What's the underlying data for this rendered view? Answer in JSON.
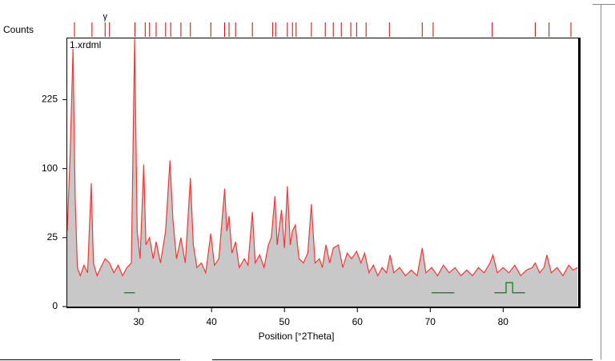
{
  "chart_data": {
    "type": "line",
    "y_axis_label": "Counts",
    "x_axis_label": "Position [°2Theta]",
    "annotation": "1.xrdml",
    "reference_label": "γ",
    "reference_label_x": 25.4,
    "yscale": "sqrt",
    "xlim": [
      20.1,
      90.4
    ],
    "ylim": [
      0,
      380
    ],
    "xticks": [
      30,
      40,
      50,
      60,
      70,
      80
    ],
    "yticks": [
      0,
      25,
      100,
      225
    ],
    "color": "#ff3333",
    "fill_color": "#c8c8c8",
    "x": [
      20.2,
      20.6,
      21.0,
      21.3,
      21.6,
      22.0,
      22.5,
      23.0,
      23.5,
      23.8,
      24.3,
      24.8,
      25.4,
      26.0,
      26.6,
      27.2,
      27.8,
      28.4,
      29.0,
      29.45,
      29.8,
      30.2,
      30.7,
      31.0,
      31.5,
      32.0,
      32.4,
      33.0,
      33.7,
      34.3,
      34.7,
      35.2,
      35.8,
      36.4,
      37.1,
      37.5,
      38.0,
      38.6,
      39.2,
      39.9,
      40.4,
      41.0,
      41.8,
      42.1,
      42.4,
      42.8,
      43.3,
      43.8,
      44.5,
      45.0,
      45.6,
      46.0,
      46.6,
      47.2,
      47.8,
      48.2,
      48.7,
      49.0,
      49.6,
      50.0,
      50.4,
      50.8,
      51.1,
      51.5,
      52.0,
      52.6,
      53.2,
      53.7,
      54.2,
      54.8,
      55.2,
      55.7,
      56.2,
      56.7,
      57.4,
      58.0,
      58.6,
      59.2,
      59.9,
      60.5,
      61.0,
      61.6,
      62.2,
      62.8,
      63.4,
      64.0,
      64.5,
      65.0,
      65.8,
      66.6,
      67.4,
      68.2,
      68.9,
      69.4,
      70.2,
      71.0,
      71.8,
      72.6,
      73.4,
      74.2,
      75.0,
      75.8,
      76.6,
      77.4,
      78.2,
      78.6,
      79.2,
      80.0,
      80.8,
      81.6,
      82.4,
      83.2,
      84.0,
      84.4,
      85.0,
      85.6,
      86.0,
      86.6,
      87.4,
      88.2,
      89.0,
      89.6,
      90.2
    ],
    "values": [
      30,
      120,
      349,
      60,
      8,
      5,
      9,
      6,
      80,
      10,
      5,
      8,
      12,
      10,
      6,
      9,
      5,
      8,
      10,
      377,
      30,
      12,
      106,
      20,
      25,
      12,
      22,
      10,
      30,
      112,
      40,
      12,
      25,
      10,
      87,
      20,
      8,
      10,
      6,
      28,
      9,
      12,
      73,
      30,
      43,
      15,
      22,
      8,
      12,
      9,
      47,
      10,
      14,
      8,
      20,
      25,
      64,
      20,
      49,
      18,
      76,
      20,
      30,
      35,
      12,
      10,
      15,
      55,
      10,
      12,
      8,
      20,
      10,
      18,
      20,
      8,
      15,
      12,
      16,
      10,
      15,
      6,
      9,
      5,
      8,
      6,
      14,
      6,
      8,
      5,
      7,
      5,
      18,
      6,
      8,
      5,
      9,
      6,
      8,
      5,
      7,
      5,
      8,
      6,
      10,
      14,
      6,
      8,
      6,
      9,
      5,
      7,
      8,
      10,
      6,
      8,
      14,
      6,
      8,
      5,
      9,
      7,
      8
    ],
    "background": {
      "color": "#008000",
      "x": [
        28.0,
        29.5,
        50.0,
        70.2,
        73.3,
        75.0,
        78.8,
        80.4,
        80.4,
        81.3,
        81.3,
        83.0
      ],
      "values": [
        1,
        1,
        null,
        1,
        1,
        null,
        1,
        1,
        3,
        3,
        1,
        1
      ]
    },
    "reference_peaks": {
      "color": "#cc0000",
      "x": [
        21.2,
        23.6,
        25.4,
        26.0,
        29.5,
        30.9,
        31.5,
        32.4,
        33.7,
        34.4,
        35.8,
        37.1,
        39.9,
        41.8,
        42.4,
        43.3,
        45.6,
        48.4,
        48.8,
        50.4,
        51.1,
        51.6,
        53.7,
        55.6,
        56.7,
        57.8,
        59.1,
        59.9,
        61.2,
        64.4,
        68.9,
        70.4,
        78.5,
        84.4,
        86.3,
        89.3
      ]
    }
  }
}
